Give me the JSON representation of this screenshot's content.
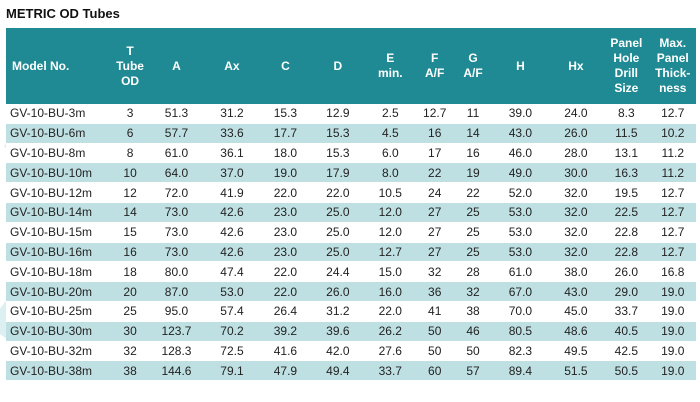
{
  "title": "METRIC OD Tubes",
  "columns": [
    [
      "Model No."
    ],
    [
      "T",
      "Tube",
      "OD"
    ],
    [
      "A"
    ],
    [
      "Ax"
    ],
    [
      "C"
    ],
    [
      "D"
    ],
    [
      "E",
      "min."
    ],
    [
      "F",
      "A/F"
    ],
    [
      "G",
      "A/F"
    ],
    [
      "H"
    ],
    [
      "Hx"
    ],
    [
      "Panel",
      "Hole",
      "Drill",
      "Size"
    ],
    [
      "Max.",
      "Panel",
      "Thick-",
      "ness"
    ]
  ],
  "rows": [
    [
      "GV-10-BU-3m",
      "3",
      "51.3",
      "31.2",
      "15.3",
      "12.9",
      "2.5",
      "12.7",
      "11",
      "39.0",
      "24.0",
      "8.3",
      "12.7"
    ],
    [
      "GV-10-BU-6m",
      "6",
      "57.7",
      "33.6",
      "17.7",
      "15.3",
      "4.5",
      "16",
      "14",
      "43.0",
      "26.0",
      "11.5",
      "10.2"
    ],
    [
      "GV-10-BU-8m",
      "8",
      "61.0",
      "36.1",
      "18.0",
      "15.3",
      "6.0",
      "17",
      "16",
      "46.0",
      "28.0",
      "13.1",
      "11.2"
    ],
    [
      "GV-10-BU-10m",
      "10",
      "64.0",
      "37.0",
      "19.0",
      "17.9",
      "8.0",
      "22",
      "19",
      "49.0",
      "30.0",
      "16.3",
      "11.2"
    ],
    [
      "GV-10-BU-12m",
      "12",
      "72.0",
      "41.9",
      "22.0",
      "22.0",
      "10.5",
      "24",
      "22",
      "52.0",
      "32.0",
      "19.5",
      "12.7"
    ],
    [
      "GV-10-BU-14m",
      "14",
      "73.0",
      "42.6",
      "23.0",
      "25.0",
      "12.0",
      "27",
      "25",
      "53.0",
      "32.0",
      "22.5",
      "12.7"
    ],
    [
      "GV-10-BU-15m",
      "15",
      "73.0",
      "42.6",
      "23.0",
      "25.0",
      "12.0",
      "27",
      "25",
      "53.0",
      "32.0",
      "22.8",
      "12.7"
    ],
    [
      "GV-10-BU-16m",
      "16",
      "73.0",
      "42.6",
      "23.0",
      "25.0",
      "12.7",
      "27",
      "25",
      "53.0",
      "32.0",
      "22.8",
      "12.7"
    ],
    [
      "GV-10-BU-18m",
      "18",
      "80.0",
      "47.4",
      "22.0",
      "24.4",
      "15.0",
      "32",
      "28",
      "61.0",
      "38.0",
      "26.0",
      "16.8"
    ],
    [
      "GV-10-BU-20m",
      "20",
      "87.0",
      "53.0",
      "22.0",
      "26.0",
      "16.0",
      "36",
      "32",
      "67.0",
      "43.0",
      "29.0",
      "19.0"
    ],
    [
      "GV-10-BU-25m",
      "25",
      "95.0",
      "57.4",
      "26.4",
      "31.2",
      "22.0",
      "41",
      "38",
      "70.0",
      "45.0",
      "33.7",
      "19.0"
    ],
    [
      "GV-10-BU-30m",
      "30",
      "123.7",
      "70.2",
      "39.2",
      "39.6",
      "26.2",
      "50",
      "46",
      "80.5",
      "48.6",
      "40.5",
      "19.0"
    ],
    [
      "GV-10-BU-32m",
      "32",
      "128.3",
      "72.5",
      "41.6",
      "42.0",
      "27.6",
      "50",
      "50",
      "82.3",
      "49.5",
      "42.5",
      "19.0"
    ],
    [
      "GV-10-BU-38m",
      "38",
      "144.6",
      "79.1",
      "47.9",
      "49.4",
      "33.7",
      "60",
      "57",
      "89.4",
      "51.5",
      "50.5",
      "19.0"
    ]
  ]
}
